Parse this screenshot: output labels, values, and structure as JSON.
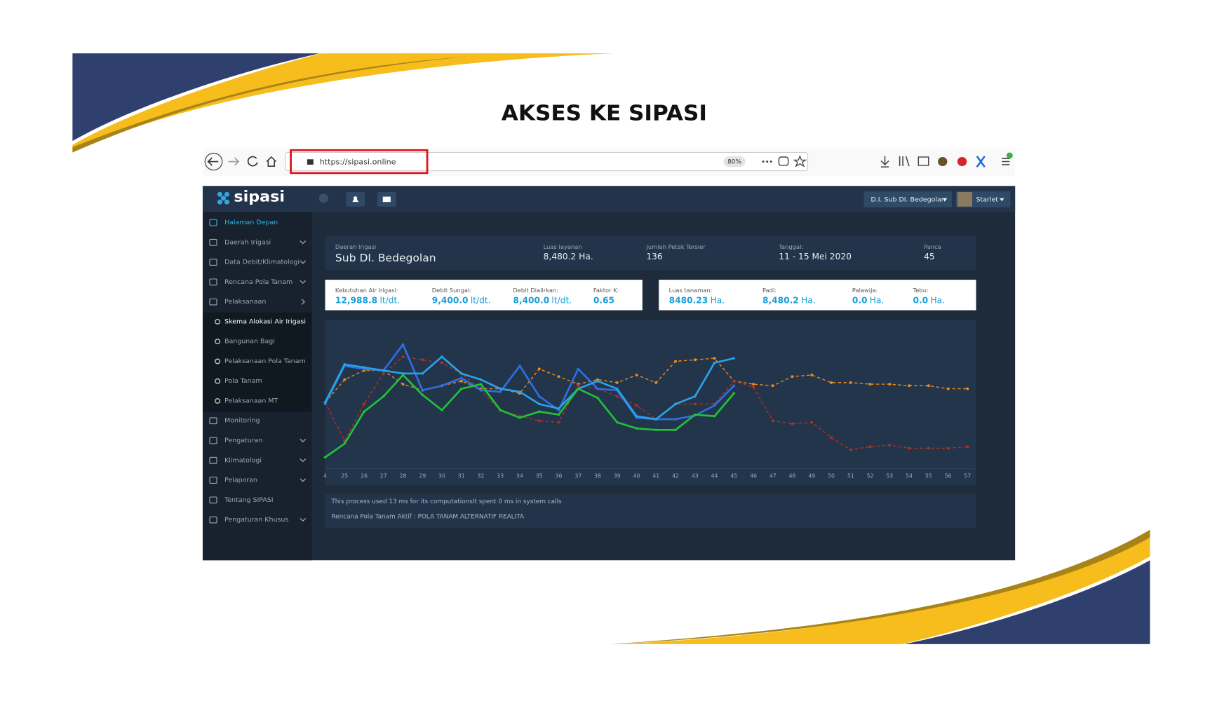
{
  "slide": {
    "title": "AKSES KE SIPASI"
  },
  "browser": {
    "url": "https://sipasi.online",
    "zoom": "80%"
  },
  "app": {
    "logo": "sipasi",
    "region_dropdown": "D.I. Sub DI. Bedegolan",
    "user": "Starlet",
    "menu": [
      {
        "label": "Halaman Depan",
        "level": 0,
        "active": true
      },
      {
        "label": "Daerah Irigasi",
        "level": 0,
        "chevron": "down"
      },
      {
        "label": "Data Debit/Klimatologi",
        "level": 0,
        "chevron": "down"
      },
      {
        "label": "Rencana Pola Tanam",
        "level": 0,
        "chevron": "down"
      },
      {
        "label": "Pelaksanaan",
        "level": 0,
        "chevron": "right"
      },
      {
        "label": "Skema Alokasi Air Irigasi",
        "level": 1,
        "active": true
      },
      {
        "label": "Bangunan Bagi",
        "level": 1
      },
      {
        "label": "Pelaksanaan Pola Tanam",
        "level": 1
      },
      {
        "label": "Pola Tanam",
        "level": 1
      },
      {
        "label": "Pelaksanaan MT",
        "level": 1
      },
      {
        "label": "Monitoring",
        "level": 0
      },
      {
        "label": "Pengaturan",
        "level": 0,
        "chevron": "down"
      },
      {
        "label": "Klimatologi",
        "level": 0,
        "chevron": "down"
      },
      {
        "label": "Pelaporan",
        "level": 0,
        "chevron": "down"
      },
      {
        "label": "Tentang SIPASI",
        "level": 0
      },
      {
        "label": "Pengaturan Khusus",
        "level": 0,
        "chevron": "down"
      }
    ]
  },
  "info": [
    {
      "label": "Daerah Irigasi",
      "value": "Sub DI. Bedegolan"
    },
    {
      "label": "Luas layanan",
      "value": "8,480.2 Ha."
    },
    {
      "label": "Jumlah Petak Tersier",
      "value": "136"
    },
    {
      "label": "Tanggal:",
      "value": "11 - 15 Mei 2020"
    },
    {
      "label": "Panca",
      "value": "45"
    }
  ],
  "stats_water": [
    {
      "label": "Kebutuhan Air Irigasi:",
      "value": "12,988.8",
      "unit": "lt/dt."
    },
    {
      "label": "Debit Sungai:",
      "value": "9,400.0",
      "unit": "lt/dt."
    },
    {
      "label": "Debit Dialirkan:",
      "value": "8,400.0",
      "unit": "lt/dt."
    },
    {
      "label": "Faktor K:",
      "value": "0.65"
    }
  ],
  "stats_crop": [
    {
      "label": "Luas tanaman:",
      "value": "8480.23",
      "unit": "Ha."
    },
    {
      "label": "Padi:",
      "value": "8,480.2",
      "unit": "Ha."
    },
    {
      "label": "Palawija:",
      "value": "0.0",
      "unit": "Ha."
    },
    {
      "label": "Tebu:",
      "value": "0.0",
      "unit": "Ha."
    }
  ],
  "footer": [
    "This process used 13 ms for its computationsIt spent 0 ms in system calls",
    "Rencana Pola Tanam Aktif : POLA TANAM ALTERNATIF REALITA"
  ],
  "chart_data": {
    "type": "line",
    "categories": [
      "4",
      "25",
      "26",
      "27",
      "28",
      "29",
      "30",
      "31",
      "32",
      "33",
      "34",
      "35",
      "36",
      "37",
      "38",
      "39",
      "40",
      "41",
      "42",
      "43",
      "44",
      "45",
      "46",
      "47",
      "48",
      "49",
      "50",
      "51",
      "52",
      "53",
      "54",
      "55",
      "56",
      "57"
    ],
    "ylim": [
      0,
      185
    ],
    "series": [
      {
        "color": "#e8891c",
        "dashed": true,
        "values": [
          87,
          117,
          129,
          129,
          111,
          103,
          109,
          115,
          105,
          105,
          99,
          131,
          121,
          111,
          117,
          113,
          123,
          113,
          141,
          143,
          145,
          115,
          111,
          109,
          121,
          123,
          113,
          113,
          111,
          111,
          109,
          109,
          105,
          105
        ]
      },
      {
        "color": "#a8322a",
        "dashed": true,
        "values": [
          87,
          37,
          85,
          125,
          147,
          143,
          139,
          125,
          103,
          77,
          69,
          63,
          61,
          109,
          105,
          95,
          83,
          65,
          85,
          85,
          85,
          115,
          107,
          63,
          59,
          61,
          41,
          25,
          29,
          31,
          27,
          27,
          27,
          29
        ]
      },
      {
        "color": "#2f6fe0",
        "dashed": false,
        "values": [
          85,
          135,
          131,
          129,
          163,
          103,
          109,
          119,
          103,
          101,
          135,
          95,
          77,
          131,
          105,
          103,
          67,
          65,
          65,
          70,
          83,
          109,
          null,
          null,
          null,
          null,
          null,
          null,
          null,
          null,
          null,
          null,
          null,
          null
        ]
      },
      {
        "color": "#29a3e8",
        "dashed": false,
        "values": [
          87,
          137,
          133,
          129,
          125,
          125,
          147,
          125,
          117,
          105,
          101,
          85,
          79,
          105,
          115,
          105,
          69,
          65,
          85,
          95,
          139,
          145,
          null,
          null,
          null,
          null,
          null,
          null,
          null,
          null,
          null,
          null,
          null,
          null
        ]
      },
      {
        "color": "#22c13a",
        "dashed": false,
        "values": [
          15,
          33,
          75,
          95,
          123,
          97,
          77,
          105,
          111,
          77,
          67,
          75,
          71,
          105,
          93,
          61,
          53,
          51,
          51,
          71,
          69,
          99,
          null,
          null,
          null,
          null,
          null,
          null,
          null,
          null,
          null,
          null,
          null,
          null
        ]
      }
    ]
  }
}
